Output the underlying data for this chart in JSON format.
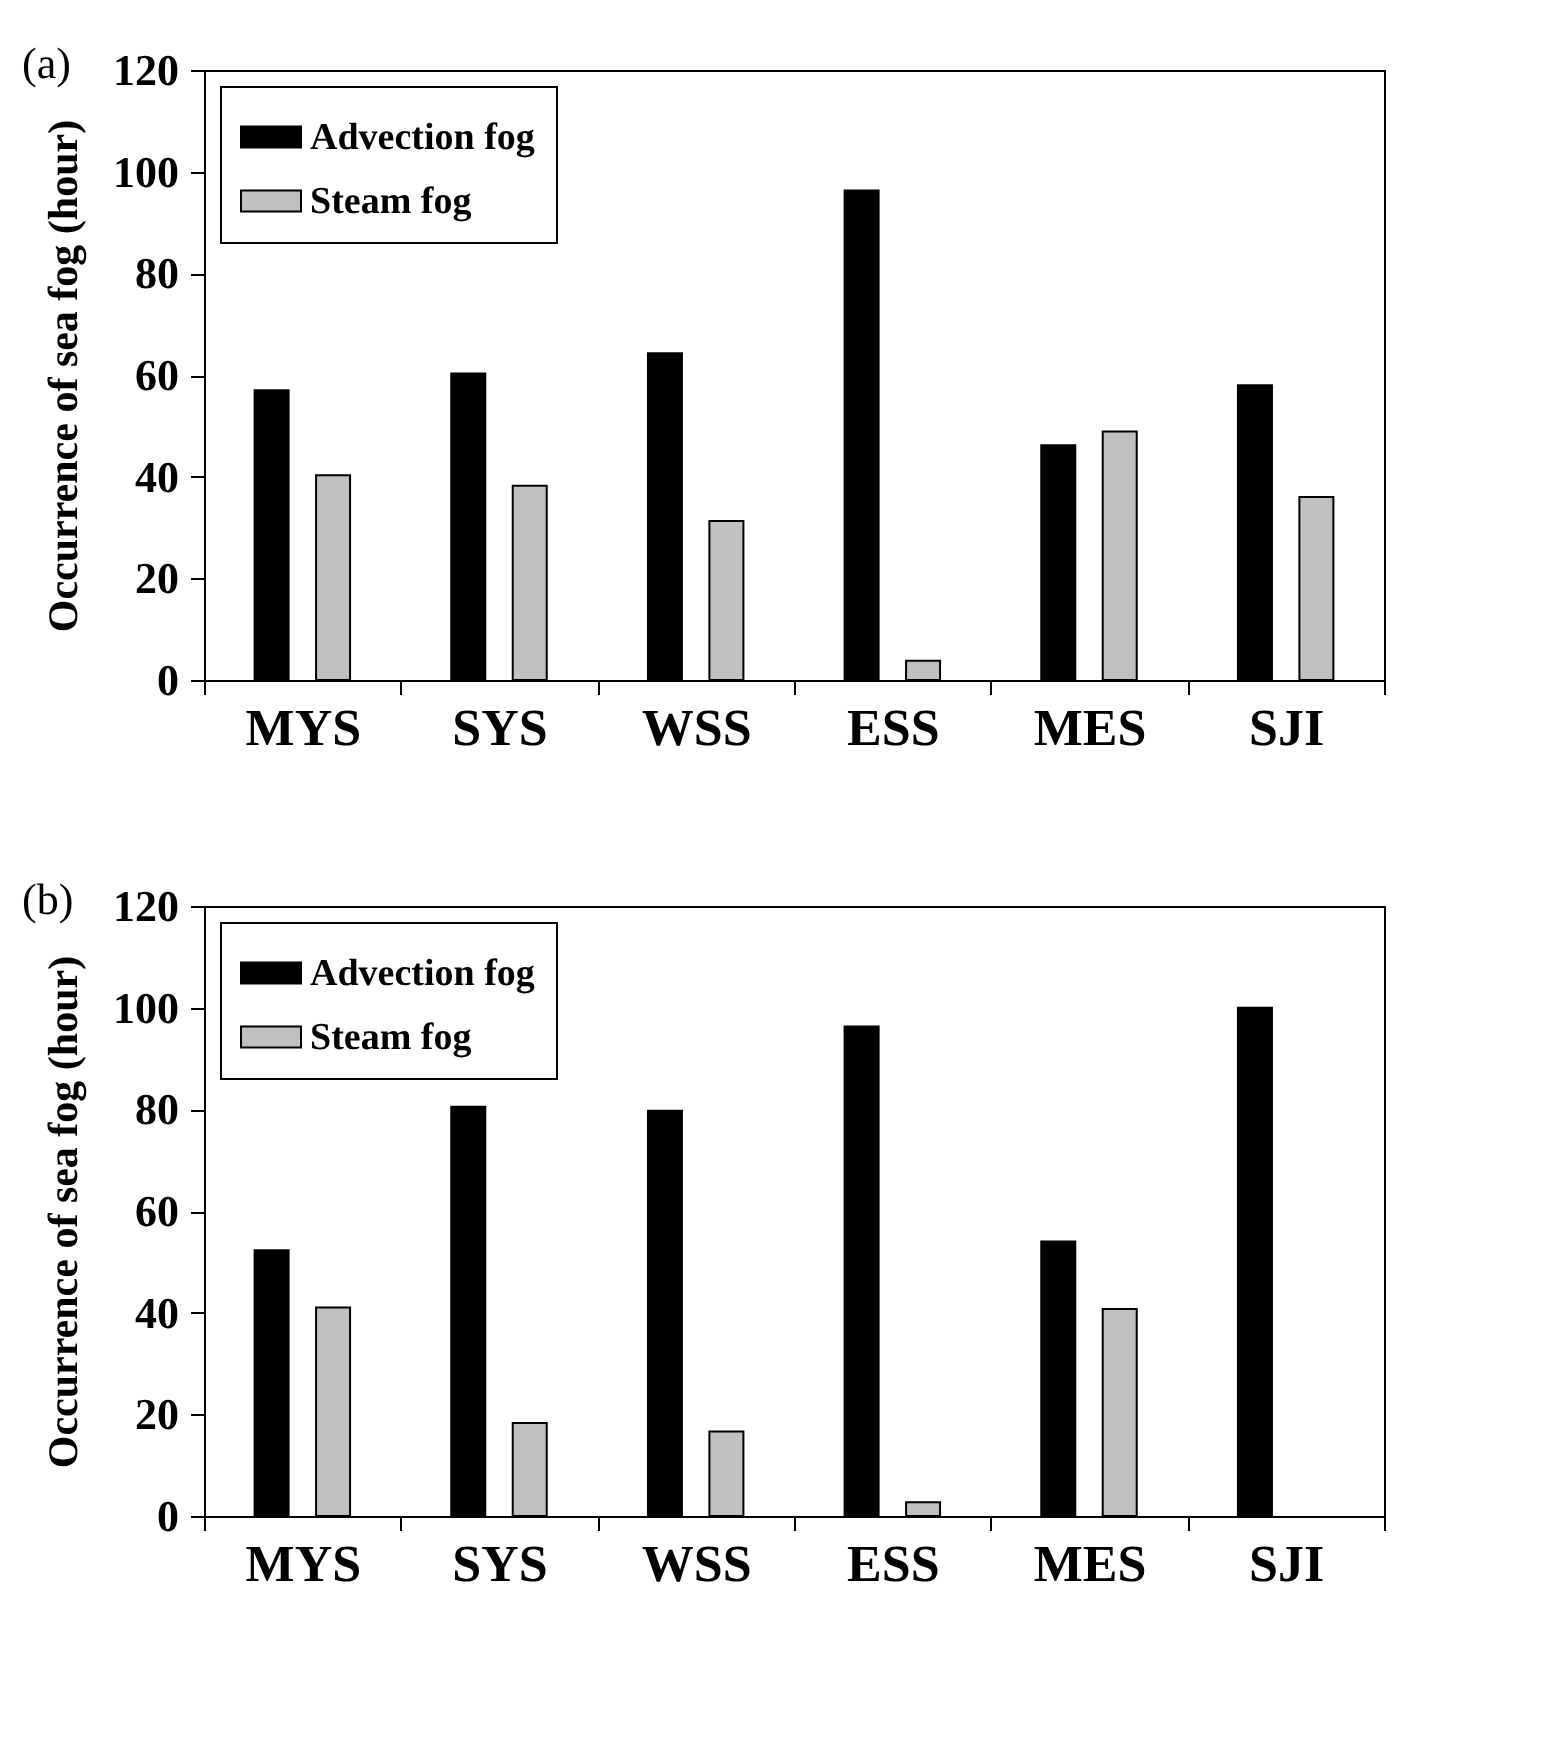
{
  "chart_data": [
    {
      "type": "bar",
      "title": "(a)",
      "ylabel": "Occurrence of sea fog (hour)",
      "categories": [
        "MYS",
        "SYS",
        "WSS",
        "ESS",
        "MES",
        "SJI"
      ],
      "series": [
        {
          "name": "Advection fog",
          "color": "#000000",
          "values": [
            57,
            60.3,
            64.3,
            96.3,
            46.2,
            58
          ]
        },
        {
          "name": "Steam fog",
          "color": "#c0c0c0",
          "values": [
            40.3,
            38.2,
            31.3,
            3.8,
            48.9,
            36
          ]
        }
      ],
      "ylim": [
        0,
        120
      ],
      "yticks": [
        0,
        20,
        40,
        60,
        80,
        100,
        120
      ],
      "legend": "top left",
      "grid": false
    },
    {
      "type": "bar",
      "title": "(b)",
      "ylabel": "Occurrence of sea fog (hour)",
      "categories": [
        "MYS",
        "SYS",
        "WSS",
        "ESS",
        "MES",
        "SJI"
      ],
      "series": [
        {
          "name": "Advection fog",
          "color": "#000000",
          "values": [
            52.3,
            80.5,
            79.7,
            96.3,
            54,
            100
          ]
        },
        {
          "name": "Steam fog",
          "color": "#c0c0c0",
          "values": [
            41,
            18.3,
            16.6,
            2.7,
            40.7,
            null
          ]
        }
      ],
      "ylim": [
        0,
        120
      ],
      "yticks": [
        0,
        20,
        40,
        60,
        80,
        100,
        120
      ],
      "legend": "top left",
      "grid": false
    }
  ]
}
